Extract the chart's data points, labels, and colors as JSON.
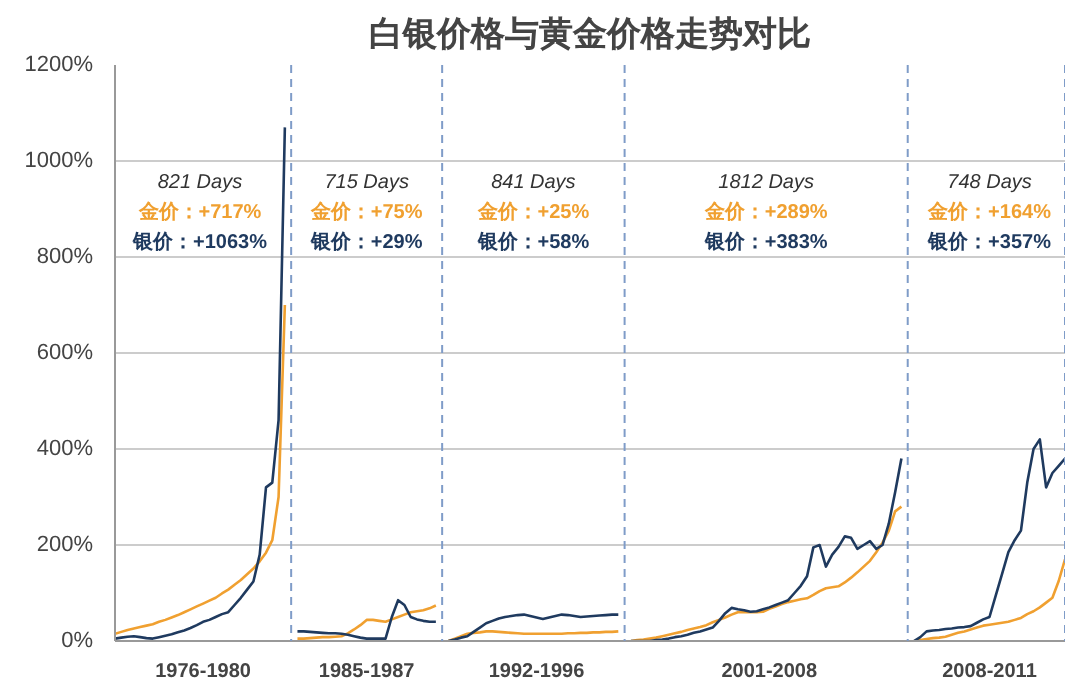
{
  "chart_data": {
    "type": "line",
    "title": "白银价格与黄金价格走势对比",
    "categories": [
      null,
      null,
      null,
      null,
      null,
      null,
      null,
      null,
      null,
      null,
      null,
      null,
      null,
      null,
      "1976-1980",
      null,
      null,
      null,
      null,
      null,
      null,
      null,
      null,
      null,
      null,
      null,
      null,
      null,
      null,
      null,
      null,
      null,
      null,
      null,
      null,
      null,
      null,
      null,
      null,
      null,
      "1985-1987",
      null,
      null,
      null,
      null,
      null,
      null,
      null,
      null,
      null,
      null,
      null,
      null,
      null,
      null,
      null,
      null,
      null,
      null,
      null,
      null,
      null,
      null,
      null,
      null,
      null,
      null,
      "1992-1996",
      null,
      null,
      null,
      null,
      null,
      null,
      null,
      null,
      null,
      null,
      null,
      null,
      null,
      null,
      null,
      null,
      null,
      null,
      null,
      null,
      null,
      null,
      null,
      null,
      null,
      null,
      null,
      null,
      null,
      null,
      null,
      null,
      null,
      null,
      null,
      null,
      "2001-2008",
      null,
      null,
      null,
      null,
      null,
      null,
      null,
      null,
      null,
      null,
      null,
      null,
      null,
      null,
      null,
      null,
      null,
      null,
      null,
      null,
      null,
      null,
      null,
      null,
      null,
      null,
      null,
      null,
      null,
      null,
      null,
      null,
      null,
      null,
      "2008-2011",
      null,
      null,
      null,
      null,
      null,
      null,
      null,
      null,
      null,
      null,
      null,
      null
    ],
    "ylim": [
      0,
      1200
    ],
    "yticks": [
      {
        "value": 0,
        "label": "0%"
      },
      {
        "value": 200,
        "label": "200%"
      },
      {
        "value": 400,
        "label": "400%"
      },
      {
        "value": 600,
        "label": "600%"
      },
      {
        "value": 800,
        "label": "800%"
      },
      {
        "value": 1000,
        "label": "1000%"
      },
      {
        "value": 1200,
        "label": "1200%"
      }
    ],
    "grid": "y",
    "line_style": "solid",
    "series": [
      {
        "color": "#f0a030",
        "values": [
          15,
          19,
          23,
          26,
          29,
          32,
          35,
          40,
          44,
          49,
          54,
          60,
          66,
          72,
          78,
          84,
          90,
          99,
          107,
          117,
          127,
          139,
          151,
          166,
          184,
          210,
          300,
          700,
          null,
          5,
          5,
          6,
          7,
          8,
          8,
          9,
          10,
          16,
          24,
          33,
          44,
          44,
          42,
          40,
          45,
          50,
          55,
          60,
          62,
          64,
          68,
          74,
          null,
          0,
          5,
          10,
          15,
          17,
          18,
          20,
          20,
          19,
          18,
          17,
          16,
          15,
          15,
          15,
          15,
          15,
          15,
          15,
          16,
          16,
          17,
          17,
          18,
          18,
          19,
          19,
          20,
          null,
          0,
          2,
          3,
          5,
          7,
          10,
          13,
          16,
          19,
          23,
          26,
          29,
          33,
          39,
          44,
          49,
          55,
          60,
          60,
          60,
          60,
          61,
          67,
          72,
          77,
          81,
          84,
          87,
          89,
          96,
          104,
          110,
          112,
          114,
          122,
          132,
          143,
          155,
          167,
          185,
          205,
          230,
          270,
          280,
          null,
          0,
          2,
          4,
          6,
          7,
          9,
          13,
          17,
          20,
          24,
          28,
          32,
          34,
          36,
          38,
          40,
          44,
          48,
          56,
          62,
          70,
          80,
          90,
          125,
          170
        ]
      },
      {
        "color": "#1f3a5f",
        "values": [
          5,
          7,
          9,
          10,
          8,
          6,
          5,
          8,
          11,
          14,
          18,
          22,
          27,
          33,
          40,
          44,
          50,
          56,
          60,
          75,
          90,
          107,
          124,
          180,
          320,
          330,
          460,
          1070,
          null,
          20,
          20,
          19,
          18,
          17,
          16,
          16,
          15,
          13,
          10,
          7,
          5,
          5,
          5,
          5,
          50,
          85,
          75,
          50,
          45,
          42,
          40,
          40,
          null,
          0,
          3,
          7,
          10,
          19,
          28,
          37,
          42,
          47,
          50,
          52,
          54,
          55,
          52,
          49,
          46,
          49,
          52,
          55,
          54,
          52,
          50,
          51,
          52,
          53,
          54,
          55,
          55,
          null,
          0,
          0,
          0,
          0,
          2,
          3,
          5,
          8,
          10,
          13,
          17,
          20,
          24,
          28,
          42,
          58,
          69,
          66,
          64,
          61,
          62,
          66,
          70,
          75,
          80,
          85,
          100,
          115,
          135,
          195,
          200,
          155,
          180,
          196,
          218,
          215,
          192,
          200,
          208,
          192,
          200,
          245,
          310,
          380,
          null,
          0,
          8,
          20,
          22,
          23,
          25,
          26,
          28,
          29,
          31,
          38,
          45,
          50,
          95,
          140,
          185,
          210,
          230,
          330,
          400,
          420,
          320,
          350,
          365,
          380
        ]
      }
    ],
    "annotations": [
      "821 Days",
      "金价：+717%",
      "银价：+1063%",
      "715 Days",
      "金价：+75%",
      "银价：+29%",
      "841 Days",
      "金价：+25%",
      "银价：+58%",
      "1812 Days",
      "金价：+289%",
      "银价：+383%",
      "748 Days",
      "金价：+164%",
      "银价：+357%"
    ]
  }
}
